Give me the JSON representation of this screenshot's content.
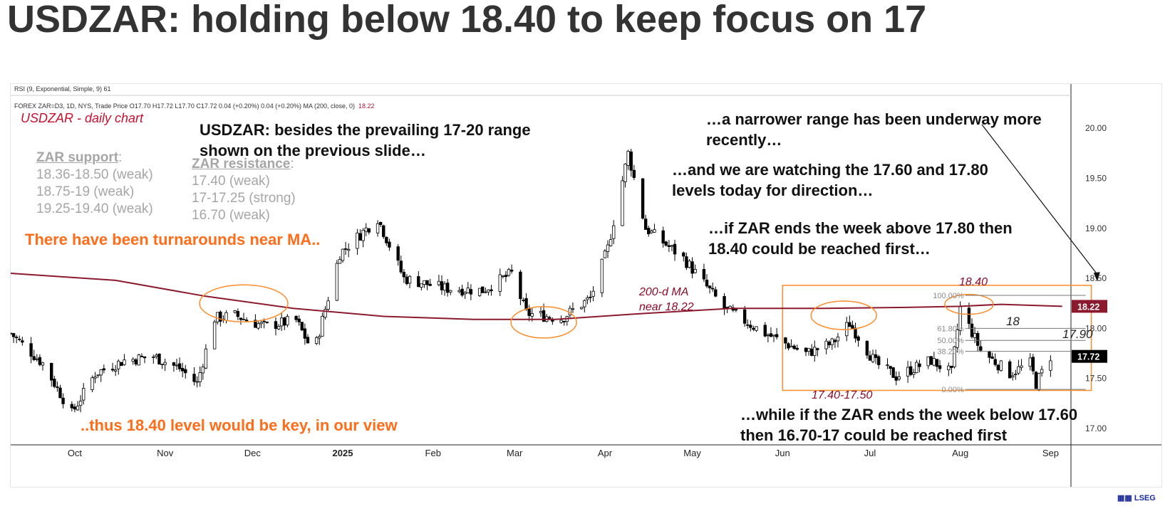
{
  "title": "USDZAR: holding below 18.40 to keep focus on 17",
  "header": {
    "rsi": "RSI (9, Exponential, Simple, 9)  61",
    "ohlc": "FOREX ZAR=D3, 1D, NYS, Trade Price  O17.70  H17.72  L17.70  C17.72  0.04 (+0.20%)  0.04 (+0.20%)    MA (200, close, 0)",
    "ma_value": "18.22"
  },
  "chart_label": "USDZAR - daily chart",
  "support": {
    "heading": "ZAR support",
    "colon": ":",
    "items": [
      "18.36-18.50 (weak)",
      "18.75-19 (weak)",
      "19.25-19.40 (weak)"
    ]
  },
  "resistance": {
    "heading": "ZAR resistance",
    "colon": ":",
    "items": [
      "17.40 (weak)",
      "17-17.25 (strong)",
      "16.70 (weak)"
    ]
  },
  "notes": {
    "besides": "USDZAR: besides the prevailing 17-20 range shown on the previous slide…",
    "narrower": "…a narrower range has been underway more recently…",
    "watching": "…and we are watching the 17.60 and 17.80 levels today for direction…",
    "above": "…if ZAR ends the week above 17.80 then 18.40 could be reached first…",
    "below": "…while if the ZAR ends the week below 17.60 then 16.70-17 could be reached first",
    "turnarounds": "There have been turnarounds near MA..",
    "key": "..thus 18.40 level would be key, in our view"
  },
  "ma_annotation": "200-d MA near 18.22",
  "level_labels": {
    "top": "18.40",
    "bottom": "17.40-17.50",
    "mid": "18",
    "right": "17.90"
  },
  "fib": [
    {
      "label": "100.00%",
      "value": 18.33
    },
    {
      "label": "61.80%",
      "value": 18.0
    },
    {
      "label": "50.00%",
      "value": 17.88
    },
    {
      "label": "38.20%",
      "value": 17.77
    },
    {
      "label": "0.00%",
      "value": 17.39
    }
  ],
  "price_tags": {
    "ma": "18.22",
    "last": "17.72"
  },
  "logo": "LSEG",
  "colors": {
    "up": "#ffffff",
    "down": "#000000",
    "ma": "#8b1a2e",
    "box": "#ff8c2a",
    "orange_text": "#ff6d1a",
    "grey_text": "#a6a6a6"
  },
  "chart_data": {
    "type": "candlestick",
    "x_labels": [
      "Oct",
      "Nov",
      "Dec",
      "2025",
      "Feb",
      "Mar",
      "Apr",
      "May",
      "Jun",
      "Jul",
      "Aug",
      "Sep"
    ],
    "x_label_dates": [
      "2024-10-01",
      "2024-11-01",
      "2024-12-01",
      "2025-01-01",
      "2025-02-01",
      "2025-03-01",
      "2025-04-01",
      "2025-05-01",
      "2025-06-01",
      "2025-07-01",
      "2025-08-01",
      "2025-09-01"
    ],
    "y_ticks": [
      "17.00",
      "17.50",
      "18.00",
      "18.50",
      "19.00",
      "19.50",
      "20.00"
    ],
    "ylim": [
      16.85,
      20.3
    ],
    "x_range": [
      "2024-09-09",
      "2025-09-08"
    ],
    "close_path": [
      [
        "2024-09-09",
        17.95
      ],
      [
        "2024-09-20",
        17.65
      ],
      [
        "2024-09-30",
        17.15
      ],
      [
        "2024-10-08",
        17.55
      ],
      [
        "2024-10-18",
        17.68
      ],
      [
        "2024-10-28",
        17.72
      ],
      [
        "2024-11-06",
        17.6
      ],
      [
        "2024-11-12",
        17.45
      ],
      [
        "2024-11-18",
        18.1
      ],
      [
        "2024-11-25",
        18.13
      ],
      [
        "2024-12-05",
        18.02
      ],
      [
        "2024-12-16",
        18.08
      ],
      [
        "2024-12-22",
        17.75
      ],
      [
        "2024-12-31",
        18.75
      ],
      [
        "2025-01-13",
        19.1
      ],
      [
        "2025-01-22",
        18.5
      ],
      [
        "2025-02-05",
        18.4
      ],
      [
        "2025-02-18",
        18.38
      ],
      [
        "2025-02-28",
        18.55
      ],
      [
        "2025-03-05",
        18.15
      ],
      [
        "2025-03-17",
        18.1
      ],
      [
        "2025-03-27",
        18.3
      ],
      [
        "2025-04-02",
        18.8
      ],
      [
        "2025-04-09",
        19.75
      ],
      [
        "2025-04-15",
        19.0
      ],
      [
        "2025-04-28",
        18.7
      ],
      [
        "2025-05-12",
        18.2
      ],
      [
        "2025-05-26",
        17.95
      ],
      [
        "2025-06-09",
        17.75
      ],
      [
        "2025-06-18",
        17.85
      ],
      [
        "2025-06-24",
        18.05
      ],
      [
        "2025-07-03",
        17.65
      ],
      [
        "2025-07-10",
        17.52
      ],
      [
        "2025-07-22",
        17.68
      ],
      [
        "2025-07-29",
        17.55
      ],
      [
        "2025-08-01",
        18.2
      ],
      [
        "2025-08-08",
        17.78
      ],
      [
        "2025-08-18",
        17.55
      ],
      [
        "2025-08-25",
        17.65
      ],
      [
        "2025-08-27",
        17.45
      ],
      [
        "2025-09-01",
        17.72
      ]
    ],
    "ma200_path": [
      [
        "2024-09-09",
        18.55
      ],
      [
        "2024-10-15",
        18.48
      ],
      [
        "2024-11-15",
        18.32
      ],
      [
        "2024-12-15",
        18.2
      ],
      [
        "2025-01-15",
        18.12
      ],
      [
        "2025-02-15",
        18.09
      ],
      [
        "2025-03-15",
        18.09
      ],
      [
        "2025-04-15",
        18.15
      ],
      [
        "2025-05-15",
        18.2
      ],
      [
        "2025-06-15",
        18.2
      ],
      [
        "2025-07-15",
        18.21
      ],
      [
        "2025-08-01",
        18.22
      ],
      [
        "2025-08-15",
        18.24
      ],
      [
        "2025-09-05",
        18.22
      ]
    ],
    "series": [
      {
        "name": "USDZAR"
      },
      {
        "name": "MA (200, close, 0)"
      }
    ],
    "highlight_box": {
      "x": [
        "2025-06-01",
        "2025-09-15"
      ],
      "y": [
        17.38,
        18.43
      ]
    },
    "ellipses": [
      {
        "center": [
          "2024-11-28",
          18.25
        ]
      },
      {
        "center": [
          "2025-03-11",
          18.06
        ]
      },
      {
        "center": [
          "2025-06-22",
          18.13
        ]
      },
      {
        "center": [
          "2025-08-04",
          18.24
        ]
      }
    ],
    "arrow": {
      "to": [
        "2025-09-17",
        18.47
      ]
    },
    "legend": "none",
    "grid": false
  }
}
